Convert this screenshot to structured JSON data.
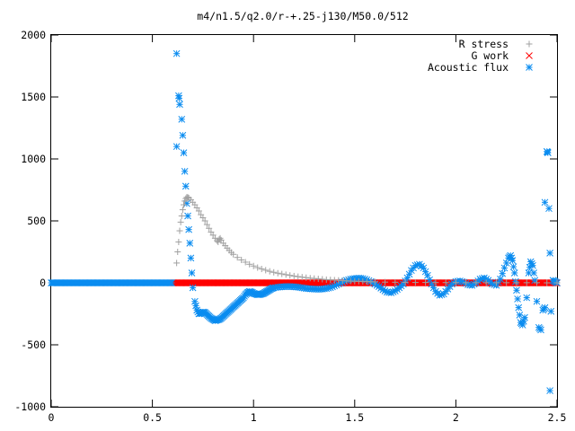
{
  "chart_data": {
    "type": "scatter",
    "title": "m4/n1.5/q2.0/r-+.25-j130/M50.0/512",
    "xlabel": "",
    "ylabel": "",
    "xlim": [
      0,
      2.5
    ],
    "ylim": [
      -1000,
      2000
    ],
    "xticks": [
      0,
      0.5,
      1,
      1.5,
      2,
      2.5
    ],
    "xtick_labels": [
      "0",
      "0.5",
      "1",
      "1.5",
      "2",
      "2.5"
    ],
    "yticks": [
      -1000,
      -500,
      0,
      500,
      1000,
      1500,
      2000
    ],
    "ytick_labels": [
      "-1000",
      "-500",
      "0",
      "500",
      "1000",
      "1500",
      "2000"
    ],
    "grid": false,
    "legend_position": "top-right",
    "series": [
      {
        "name": "R stress",
        "marker": "plus",
        "color": "#a0a0a0",
        "points": [
          [
            0.62,
            160
          ],
          [
            0.625,
            250
          ],
          [
            0.63,
            330
          ],
          [
            0.635,
            420
          ],
          [
            0.64,
            490
          ],
          [
            0.645,
            540
          ],
          [
            0.65,
            590
          ],
          [
            0.655,
            630
          ],
          [
            0.66,
            660
          ],
          [
            0.665,
            680
          ],
          [
            0.67,
            690
          ],
          [
            0.675,
            690
          ],
          [
            0.68,
            685
          ],
          [
            0.69,
            670
          ],
          [
            0.7,
            650
          ],
          [
            0.71,
            630
          ],
          [
            0.72,
            605
          ],
          [
            0.73,
            580
          ],
          [
            0.74,
            550
          ],
          [
            0.75,
            525
          ],
          [
            0.76,
            500
          ],
          [
            0.77,
            470
          ],
          [
            0.78,
            440
          ],
          [
            0.79,
            410
          ],
          [
            0.8,
            385
          ],
          [
            0.81,
            360
          ],
          [
            0.82,
            340
          ],
          [
            0.825,
            330
          ],
          [
            0.83,
            350
          ],
          [
            0.835,
            360
          ],
          [
            0.84,
            345
          ],
          [
            0.85,
            320
          ],
          [
            0.86,
            300
          ],
          [
            0.87,
            280
          ],
          [
            0.88,
            262
          ],
          [
            0.89,
            245
          ],
          [
            0.9,
            230
          ],
          [
            0.92,
            205
          ],
          [
            0.94,
            185
          ],
          [
            0.96,
            167
          ],
          [
            0.98,
            150
          ],
          [
            1.0,
            136
          ],
          [
            1.02,
            123
          ],
          [
            1.04,
            112
          ],
          [
            1.06,
            102
          ],
          [
            1.08,
            93
          ],
          [
            1.1,
            85
          ],
          [
            1.12,
            78
          ],
          [
            1.14,
            72
          ],
          [
            1.16,
            66
          ],
          [
            1.18,
            60
          ],
          [
            1.2,
            55
          ],
          [
            1.22,
            50
          ],
          [
            1.24,
            46
          ],
          [
            1.26,
            42
          ],
          [
            1.28,
            38
          ],
          [
            1.3,
            35
          ],
          [
            1.32,
            32
          ],
          [
            1.34,
            29
          ],
          [
            1.36,
            26
          ],
          [
            1.38,
            24
          ],
          [
            1.4,
            22
          ],
          [
            1.42,
            20
          ],
          [
            1.44,
            18
          ],
          [
            1.46,
            16
          ],
          [
            1.48,
            14
          ],
          [
            1.5,
            13
          ],
          [
            1.52,
            12
          ],
          [
            1.54,
            11
          ],
          [
            1.56,
            10
          ],
          [
            1.58,
            9
          ],
          [
            1.6,
            8
          ],
          [
            1.65,
            6
          ],
          [
            1.7,
            5
          ],
          [
            1.75,
            4
          ],
          [
            1.8,
            3
          ],
          [
            1.85,
            3
          ],
          [
            1.9,
            2
          ],
          [
            1.95,
            2
          ],
          [
            2.0,
            2
          ],
          [
            2.05,
            1
          ],
          [
            2.1,
            1
          ],
          [
            2.15,
            1
          ],
          [
            2.2,
            1
          ],
          [
            2.25,
            1
          ],
          [
            2.3,
            1
          ],
          [
            2.35,
            1
          ],
          [
            2.4,
            1
          ],
          [
            2.45,
            0
          ],
          [
            2.5,
            0
          ]
        ]
      },
      {
        "name": "G work",
        "marker": "cross",
        "color": "#ff0000",
        "x_start": 0.6,
        "x_end": 2.5,
        "y": 0
      },
      {
        "name": "Acoustic flux",
        "marker": "star",
        "color": "#0a8cf0",
        "points": [
          [
            0.0,
            0
          ],
          [
            0.05,
            0
          ],
          [
            0.1,
            0
          ],
          [
            0.15,
            0
          ],
          [
            0.2,
            0
          ],
          [
            0.25,
            0
          ],
          [
            0.3,
            0
          ],
          [
            0.35,
            0
          ],
          [
            0.4,
            0
          ],
          [
            0.45,
            0
          ],
          [
            0.5,
            0
          ],
          [
            0.55,
            0
          ],
          [
            0.6,
            0
          ],
          [
            0.62,
            1850
          ],
          [
            0.62,
            1100
          ],
          [
            0.63,
            1510
          ],
          [
            0.632,
            1490
          ],
          [
            0.635,
            1440
          ],
          [
            0.645,
            1320
          ],
          [
            0.65,
            1190
          ],
          [
            0.655,
            1050
          ],
          [
            0.66,
            900
          ],
          [
            0.665,
            780
          ],
          [
            0.67,
            640
          ],
          [
            0.675,
            540
          ],
          [
            0.68,
            430
          ],
          [
            0.685,
            320
          ],
          [
            0.69,
            200
          ],
          [
            0.695,
            80
          ],
          [
            0.7,
            -40
          ],
          [
            0.71,
            -150
          ],
          [
            0.72,
            -220
          ],
          [
            0.73,
            -250
          ],
          [
            0.74,
            -245
          ],
          [
            0.75,
            -235
          ],
          [
            0.76,
            -240
          ],
          [
            0.77,
            -255
          ],
          [
            0.78,
            -270
          ],
          [
            0.79,
            -285
          ],
          [
            0.8,
            -295
          ],
          [
            0.81,
            -305
          ],
          [
            0.82,
            -300
          ],
          [
            0.83,
            -295
          ],
          [
            0.84,
            -285
          ],
          [
            0.85,
            -270
          ],
          [
            0.86,
            -255
          ],
          [
            0.87,
            -240
          ],
          [
            0.88,
            -225
          ],
          [
            0.89,
            -210
          ],
          [
            0.9,
            -195
          ],
          [
            0.91,
            -180
          ],
          [
            0.92,
            -165
          ],
          [
            0.93,
            -150
          ],
          [
            0.94,
            -135
          ],
          [
            0.95,
            -120
          ],
          [
            0.96,
            -95
          ],
          [
            0.97,
            -80
          ],
          [
            0.98,
            -70
          ],
          [
            0.99,
            -75
          ],
          [
            1.0,
            -85
          ],
          [
            1.01,
            -90
          ],
          [
            1.02,
            -95
          ],
          [
            1.03,
            -95
          ],
          [
            1.04,
            -90
          ],
          [
            1.05,
            -85
          ],
          [
            1.06,
            -75
          ],
          [
            1.07,
            -65
          ],
          [
            1.08,
            -55
          ],
          [
            1.09,
            -45
          ],
          [
            1.1,
            -40
          ],
          [
            1.12,
            -35
          ],
          [
            1.14,
            -32
          ],
          [
            1.16,
            -30
          ],
          [
            1.18,
            -30
          ],
          [
            1.2,
            -32
          ],
          [
            1.22,
            -35
          ],
          [
            1.24,
            -40
          ],
          [
            1.26,
            -45
          ],
          [
            1.28,
            -48
          ],
          [
            1.3,
            -50
          ],
          [
            1.32,
            -52
          ],
          [
            1.34,
            -50
          ],
          [
            1.36,
            -45
          ],
          [
            1.38,
            -38
          ],
          [
            1.4,
            -25
          ],
          [
            1.42,
            -10
          ],
          [
            1.44,
            5
          ],
          [
            1.46,
            20
          ],
          [
            1.48,
            30
          ],
          [
            1.5,
            35
          ],
          [
            1.52,
            38
          ],
          [
            1.54,
            35
          ],
          [
            1.56,
            25
          ],
          [
            1.58,
            10
          ],
          [
            1.6,
            -10
          ],
          [
            1.62,
            -30
          ],
          [
            1.64,
            -55
          ],
          [
            1.66,
            -75
          ],
          [
            1.68,
            -80
          ],
          [
            1.7,
            -65
          ],
          [
            1.72,
            -40
          ],
          [
            1.74,
            -10
          ],
          [
            1.76,
            40
          ],
          [
            1.78,
            100
          ],
          [
            1.8,
            140
          ],
          [
            1.82,
            150
          ],
          [
            1.84,
            120
          ],
          [
            1.86,
            60
          ],
          [
            1.88,
            -10
          ],
          [
            1.9,
            -70
          ],
          [
            1.92,
            -100
          ],
          [
            1.94,
            -90
          ],
          [
            1.96,
            -50
          ],
          [
            1.98,
            -10
          ],
          [
            2.0,
            10
          ],
          [
            2.02,
            15
          ],
          [
            2.04,
            5
          ],
          [
            2.06,
            -15
          ],
          [
            2.08,
            -20
          ],
          [
            2.1,
            0
          ],
          [
            2.12,
            30
          ],
          [
            2.14,
            40
          ],
          [
            2.16,
            20
          ],
          [
            2.18,
            -10
          ],
          [
            2.2,
            -20
          ],
          [
            2.22,
            30
          ],
          [
            2.24,
            120
          ],
          [
            2.26,
            200
          ],
          [
            2.27,
            220
          ],
          [
            2.28,
            180
          ],
          [
            2.29,
            80
          ],
          [
            2.3,
            -60
          ],
          [
            2.31,
            -200
          ],
          [
            2.32,
            -320
          ],
          [
            2.33,
            -340
          ],
          [
            2.34,
            -280
          ],
          [
            2.35,
            -120
          ],
          [
            2.36,
            80
          ],
          [
            2.37,
            170
          ],
          [
            2.38,
            140
          ],
          [
            2.39,
            20
          ],
          [
            2.4,
            -150
          ],
          [
            2.41,
            -360
          ],
          [
            2.42,
            -380
          ],
          [
            2.43,
            -220
          ],
          [
            2.44,
            -200
          ],
          [
            2.44,
            650
          ],
          [
            2.45,
            1060
          ],
          [
            2.455,
            1050
          ],
          [
            2.46,
            600
          ],
          [
            2.465,
            240
          ],
          [
            2.47,
            -230
          ],
          [
            2.465,
            -870
          ],
          [
            2.48,
            20
          ],
          [
            2.49,
            10
          ],
          [
            2.5,
            0
          ]
        ]
      }
    ]
  }
}
